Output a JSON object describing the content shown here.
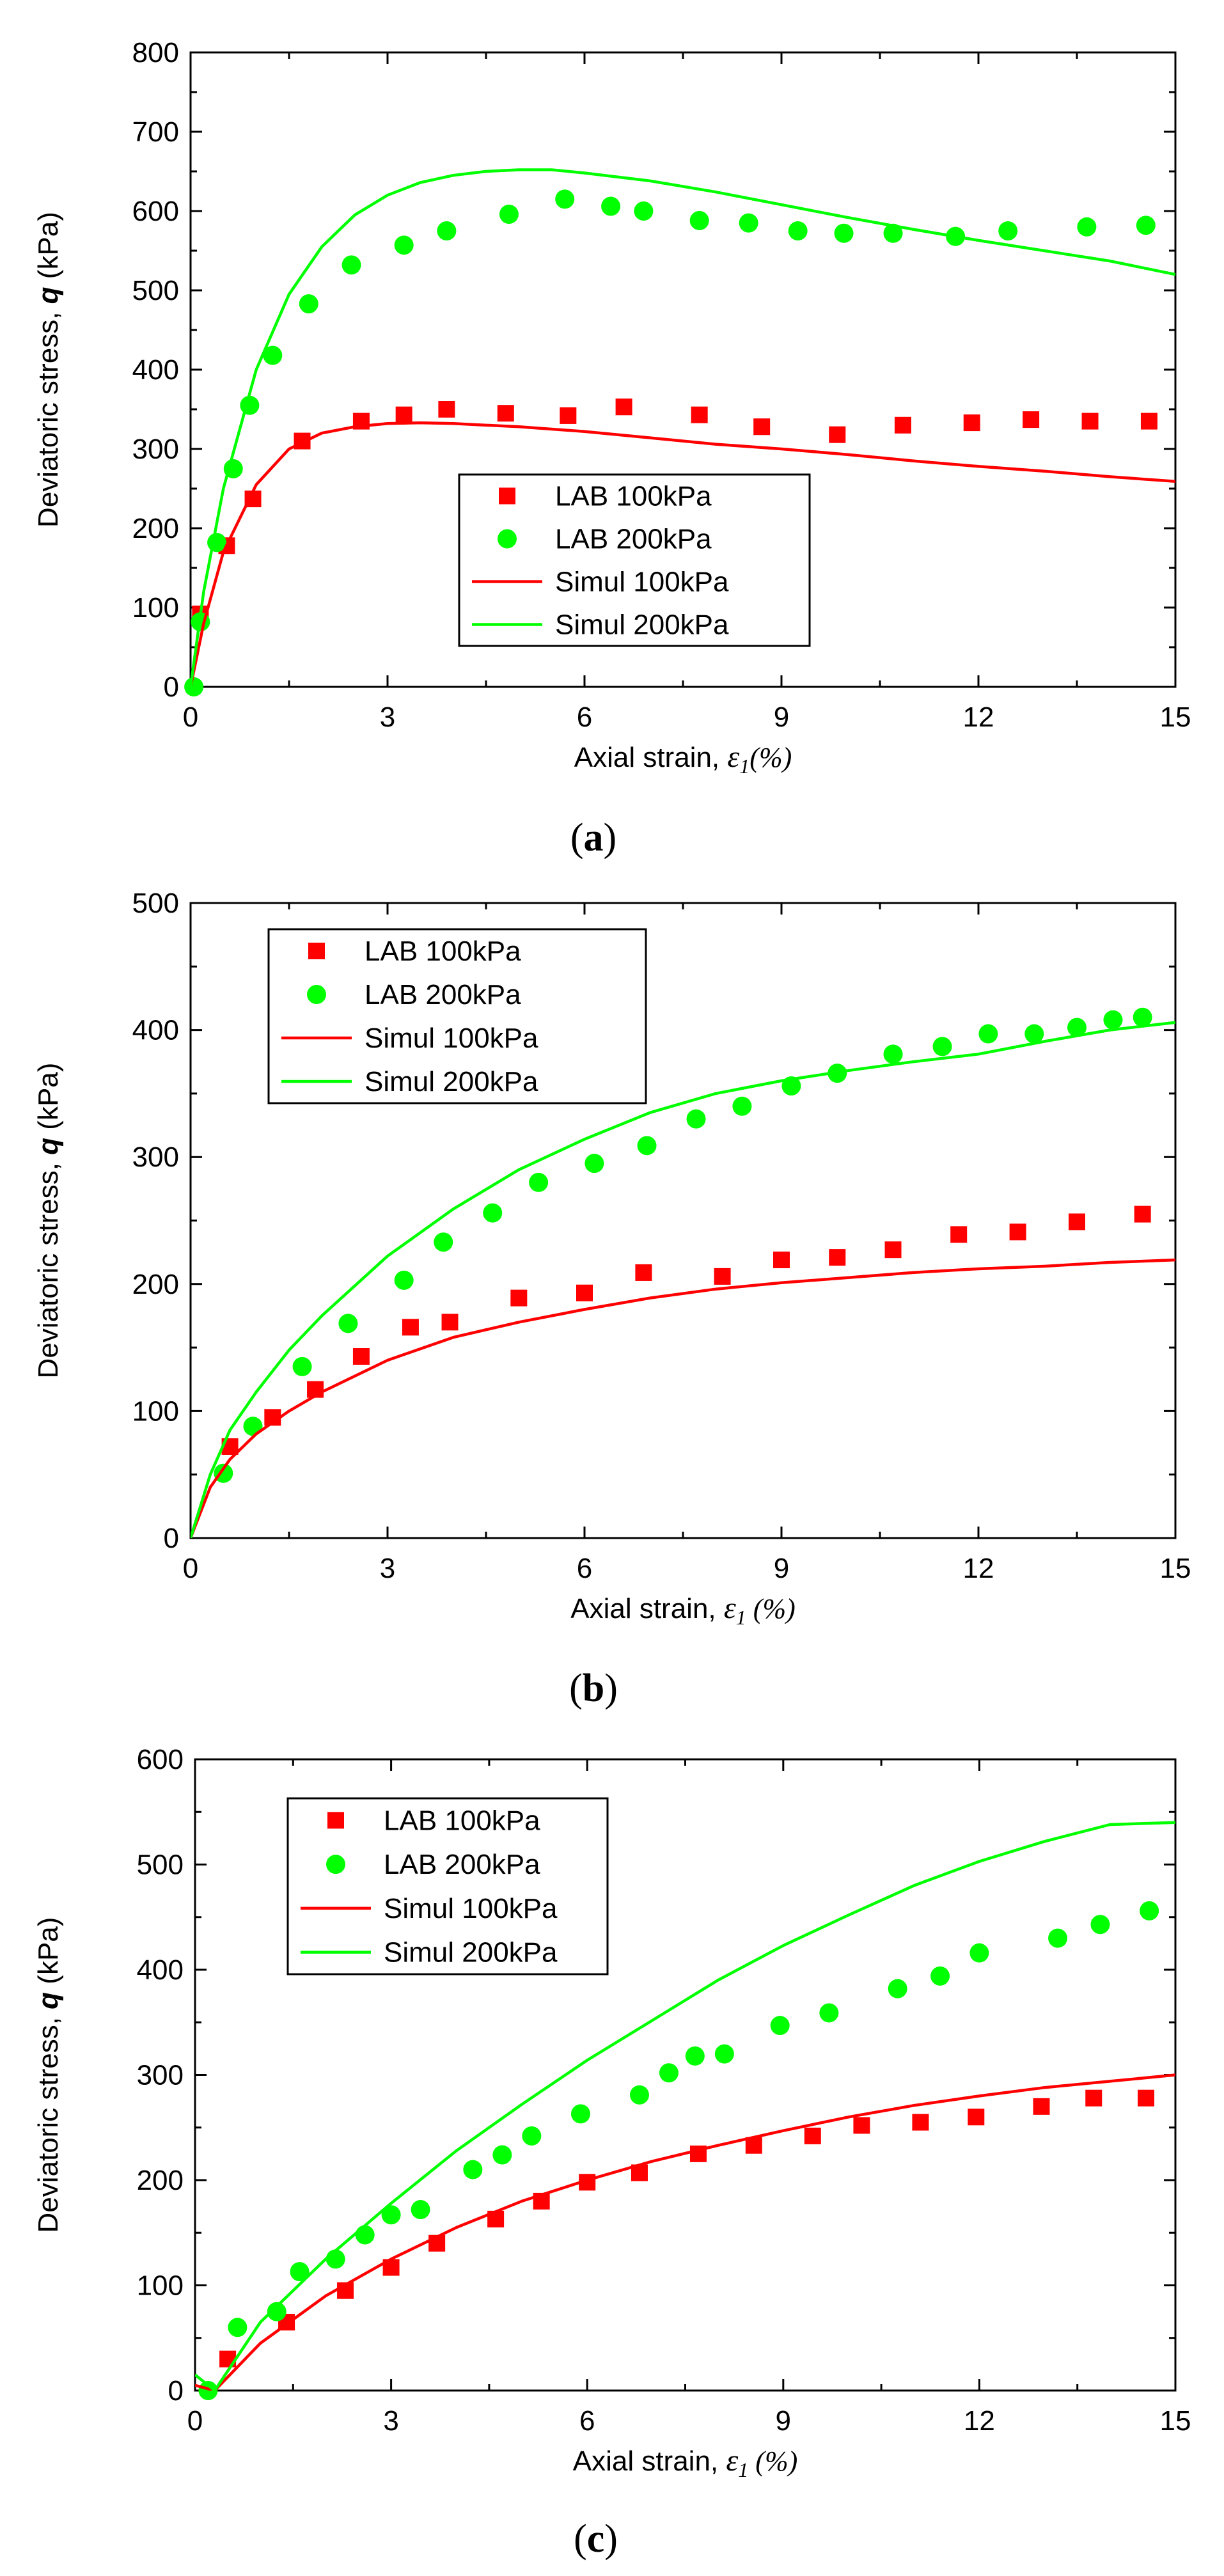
{
  "chart_data": [
    {
      "type": "scatter",
      "panel_label": "(a)",
      "panel_letter": "a",
      "ylabel_prefix": "Deviatoric stress, ",
      "ylabel_var": "q",
      "ylabel_unit": " (kPa)",
      "xlabel_prefix": "Axial strain, ",
      "xlabel_var": "ε",
      "xlabel_sub": "1",
      "xlabel_unit": "(%)",
      "xlim": [
        0,
        15
      ],
      "ylim": [
        0,
        800
      ],
      "xticks": [
        "0",
        "3",
        "6",
        "9",
        "12",
        "15"
      ],
      "yticks": [
        "0",
        "100",
        "200",
        "300",
        "400",
        "500",
        "600",
        "700",
        "800"
      ],
      "legend_position": "center",
      "series": [
        {
          "name": "LAB 100kPa",
          "kind": "square",
          "color": "#ff0000",
          "x": [
            0.15,
            0.55,
            0.95,
            1.7,
            2.6,
            3.25,
            3.9,
            4.8,
            5.75,
            6.6,
            7.75,
            8.7,
            9.85,
            10.85,
            11.9,
            12.8,
            13.7,
            14.6
          ],
          "y": [
            92,
            178,
            237,
            310,
            335,
            343,
            350,
            345,
            342,
            353,
            343,
            328,
            318,
            330,
            333,
            337,
            335,
            335
          ]
        },
        {
          "name": "LAB 200kPa",
          "kind": "circle",
          "color": "#00ff00",
          "x": [
            0.05,
            0.15,
            0.4,
            0.65,
            0.9,
            1.25,
            1.8,
            2.45,
            3.25,
            3.9,
            4.85,
            5.7,
            6.4,
            6.9,
            7.75,
            8.5,
            9.25,
            9.95,
            10.7,
            11.65,
            12.45,
            13.65,
            14.55
          ],
          "y": [
            0,
            82,
            182,
            275,
            355,
            418,
            483,
            532,
            557,
            575,
            596,
            615,
            606,
            600,
            588,
            585,
            575,
            572,
            572,
            568,
            575,
            580,
            582
          ]
        },
        {
          "name": "Simul  100kPa",
          "kind": "line",
          "color": "#ff0000",
          "x": [
            0,
            0.2,
            0.5,
            1.0,
            1.5,
            2.0,
            2.5,
            3.0,
            3.5,
            4.0,
            5.0,
            6.0,
            7.0,
            8.0,
            9.0,
            10.0,
            11.0,
            12.0,
            13.0,
            14.0,
            15.0
          ],
          "y": [
            0,
            80,
            170,
            255,
            300,
            320,
            328,
            332,
            333,
            332,
            328,
            322,
            314,
            306,
            300,
            293,
            285,
            278,
            272,
            265,
            259
          ]
        },
        {
          "name": "Simul  200kPa",
          "kind": "line",
          "color": "#00ff00",
          "x": [
            0,
            0.2,
            0.5,
            1.0,
            1.5,
            2.0,
            2.5,
            3.0,
            3.5,
            4.0,
            4.5,
            5.0,
            5.5,
            6.0,
            7.0,
            8.0,
            9.0,
            10.0,
            11.0,
            12.0,
            13.0,
            14.0,
            15.0
          ],
          "y": [
            0,
            120,
            250,
            400,
            495,
            555,
            595,
            620,
            636,
            645,
            650,
            652,
            652,
            648,
            638,
            624,
            608,
            592,
            577,
            563,
            550,
            537,
            520
          ]
        }
      ]
    },
    {
      "type": "scatter",
      "panel_label": "(b)",
      "panel_letter": "b",
      "ylabel_prefix": "Deviatoric stress, ",
      "ylabel_var": "q",
      "ylabel_unit": " (kPa)",
      "xlabel_prefix": "Axial strain, ",
      "xlabel_var": "ε",
      "xlabel_sub": "1",
      "xlabel_unit": " (%)",
      "xlim": [
        0,
        15
      ],
      "ylim": [
        0,
        500
      ],
      "xticks": [
        "0",
        "3",
        "6",
        "9",
        "12",
        "15"
      ],
      "yticks": [
        "0",
        "100",
        "200",
        "300",
        "400",
        "500"
      ],
      "legend_position": "top-left",
      "series": [
        {
          "name": "LAB 100kPa",
          "kind": "square",
          "color": "#ff0000",
          "x": [
            0.6,
            1.25,
            1.9,
            2.6,
            3.35,
            3.95,
            5.0,
            6.0,
            6.9,
            8.1,
            9.0,
            9.85,
            10.7,
            11.7,
            12.6,
            13.5,
            14.5
          ],
          "y": [
            72,
            95,
            117,
            143,
            166,
            170,
            189,
            193,
            209,
            206,
            219,
            221,
            227,
            239,
            241,
            249,
            255
          ]
        },
        {
          "name": "LAB 200kPa",
          "kind": "circle",
          "color": "#00ff00",
          "x": [
            0.5,
            0.95,
            1.7,
            2.4,
            3.25,
            3.85,
            4.6,
            5.3,
            6.15,
            6.95,
            7.7,
            8.4,
            9.15,
            9.85,
            10.7,
            11.45,
            12.15,
            12.85,
            13.5,
            14.05,
            14.5
          ],
          "y": [
            51,
            88,
            135,
            169,
            203,
            233,
            256,
            280,
            295,
            309,
            330,
            340,
            356,
            366,
            381,
            387,
            397,
            397,
            402,
            408,
            410
          ]
        },
        {
          "name": "Simul  100kPa",
          "kind": "line",
          "color": "#ff0000",
          "x": [
            0,
            0.3,
            0.6,
            1.0,
            1.5,
            2.0,
            3.0,
            4.0,
            5.0,
            6.0,
            7.0,
            8.0,
            9.0,
            10.0,
            11.0,
            12.0,
            13.0,
            14.0,
            15.0
          ],
          "y": [
            0,
            40,
            62,
            82,
            100,
            115,
            140,
            158,
            170,
            180,
            189,
            196,
            201,
            205,
            209,
            212,
            214,
            217,
            219
          ]
        },
        {
          "name": "Simul  200kPa",
          "kind": "line",
          "color": "#00ff00",
          "x": [
            0,
            0.3,
            0.6,
            1.0,
            1.5,
            2.0,
            3.0,
            4.0,
            5.0,
            6.0,
            7.0,
            8.0,
            9.0,
            10.0,
            11.0,
            12.0,
            13.0,
            14.0,
            15.0
          ],
          "y": [
            0,
            50,
            85,
            115,
            148,
            175,
            222,
            259,
            290,
            314,
            335,
            350,
            360,
            368,
            375,
            381,
            391,
            400,
            406
          ]
        }
      ]
    },
    {
      "type": "scatter",
      "panel_label": "(c)",
      "panel_letter": "c",
      "ylabel_prefix": "Deviatoric stress, ",
      "ylabel_var": "q",
      "ylabel_unit": " (kPa)",
      "xlabel_prefix": "Axial strain, ",
      "xlabel_var": "ε",
      "xlabel_sub": "1",
      "xlabel_unit": " (%)",
      "xlim": [
        0,
        15
      ],
      "ylim": [
        0,
        600
      ],
      "xticks": [
        "0",
        "3",
        "6",
        "9",
        "12",
        "15"
      ],
      "yticks": [
        "0",
        "100",
        "200",
        "300",
        "400",
        "500",
        "600"
      ],
      "legend_position": "top-left",
      "series": [
        {
          "name": "LAB 100kPa",
          "kind": "square",
          "color": "#ff0000",
          "x": [
            0.5,
            1.4,
            2.3,
            3.0,
            3.7,
            4.6,
            5.3,
            6.0,
            6.8,
            7.7,
            8.55,
            9.45,
            10.2,
            11.1,
            11.95,
            12.95,
            13.75,
            14.55
          ],
          "y": [
            30,
            65,
            95,
            117,
            140,
            163,
            180,
            198,
            207,
            225,
            233,
            242,
            252,
            255,
            260,
            270,
            278,
            278
          ]
        },
        {
          "name": "LAB 200kPa",
          "kind": "circle",
          "color": "#00ff00",
          "x": [
            0.2,
            0.65,
            1.25,
            1.6,
            2.15,
            2.6,
            3.0,
            3.45,
            4.25,
            4.7,
            5.15,
            5.9,
            6.8,
            7.25,
            7.65,
            8.1,
            8.95,
            9.7,
            10.75,
            11.4,
            12.0,
            13.2,
            13.85,
            14.6
          ],
          "y": [
            0,
            60,
            75,
            113,
            125,
            148,
            167,
            172,
            210,
            224,
            242,
            263,
            281,
            302,
            318,
            320,
            347,
            359,
            382,
            394,
            416,
            430,
            443,
            456
          ]
        },
        {
          "name": "Simul  100kPa",
          "kind": "line",
          "color": "#ff0000",
          "x": [
            0,
            0.3,
            1.0,
            2.0,
            3.0,
            4.0,
            5.0,
            6.0,
            7.0,
            8.0,
            9.0,
            10.0,
            11.0,
            12.0,
            13.0,
            14.0,
            15.0
          ],
          "y": [
            5,
            0,
            45,
            90,
            125,
            155,
            180,
            200,
            218,
            233,
            247,
            260,
            271,
            280,
            288,
            294,
            300
          ]
        },
        {
          "name": "Simul  200kPa",
          "kind": "line",
          "color": "#00ff00",
          "x": [
            0,
            0.3,
            1.0,
            2.0,
            3.0,
            4.0,
            5.0,
            6.0,
            7.0,
            8.0,
            9.0,
            10.0,
            11.0,
            12.0,
            13.0,
            14.0,
            15.0
          ],
          "y": [
            15,
            0,
            65,
            125,
            178,
            228,
            272,
            314,
            352,
            390,
            423,
            452,
            480,
            503,
            522,
            538,
            540
          ]
        }
      ]
    }
  ]
}
